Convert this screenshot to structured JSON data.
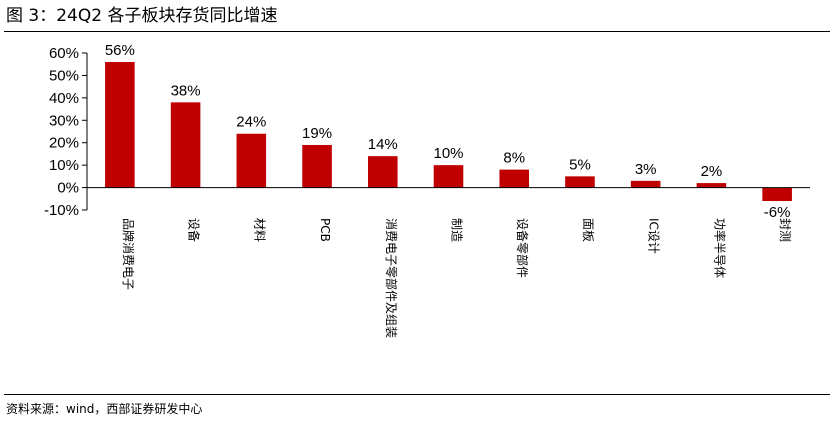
{
  "figure": {
    "title": "图 3：24Q2 各子板块存货同比增速",
    "source": "资料来源：wind，西部证券研发中心"
  },
  "chart_data": {
    "type": "bar",
    "categories": [
      "品牌消费电子",
      "设备",
      "材料",
      "PCB",
      "消费电子零部件及组装",
      "制造",
      "设备零部件",
      "面板",
      "IC设计",
      "功率半导体",
      "封测"
    ],
    "values": [
      56,
      38,
      24,
      19,
      14,
      10,
      8,
      5,
      3,
      2,
      -6
    ],
    "data_labels": [
      "56%",
      "38%",
      "24%",
      "19%",
      "14%",
      "10%",
      "8%",
      "5%",
      "3%",
      "2%",
      "-6%"
    ],
    "y_ticks": [
      "-10%",
      "0%",
      "10%",
      "20%",
      "30%",
      "40%",
      "50%",
      "60%"
    ],
    "ylim": [
      -10,
      60
    ],
    "bar_color": "#C00000",
    "grid": false,
    "legend": "none"
  }
}
